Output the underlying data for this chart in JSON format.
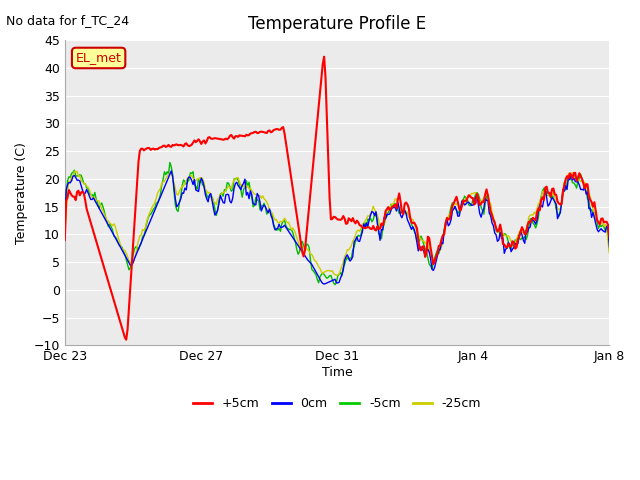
{
  "title": "Temperature Profile E",
  "subtitle": "No data for f_TC_24",
  "xlabel": "Time",
  "ylabel": "Temperature (C)",
  "ylim": [
    -10,
    45
  ],
  "yticks": [
    -10,
    -5,
    0,
    5,
    10,
    15,
    20,
    25,
    30,
    35,
    40,
    45
  ],
  "legend_labels": [
    "+5cm",
    "0cm",
    "-5cm",
    "-25cm"
  ],
  "legend_colors": [
    "#ff0000",
    "#0000ff",
    "#00cc00",
    "#cccc00"
  ],
  "line_colors": {
    "red": "#ff0000",
    "blue": "#0000ff",
    "green": "#00bb00",
    "yellow": "#cccc00"
  },
  "annotation_box_color": "#ffff99",
  "annotation_text": "EL_met",
  "annotation_text_color": "#cc0000",
  "xtick_positions": [
    0,
    4,
    8,
    12,
    16
  ],
  "xtick_labels": [
    "Dec 23",
    "Dec 27",
    "Dec 31",
    "Jan 4",
    "Jan 8"
  ],
  "plot_bg": "#ebebeb",
  "grid_color": "#ffffff"
}
